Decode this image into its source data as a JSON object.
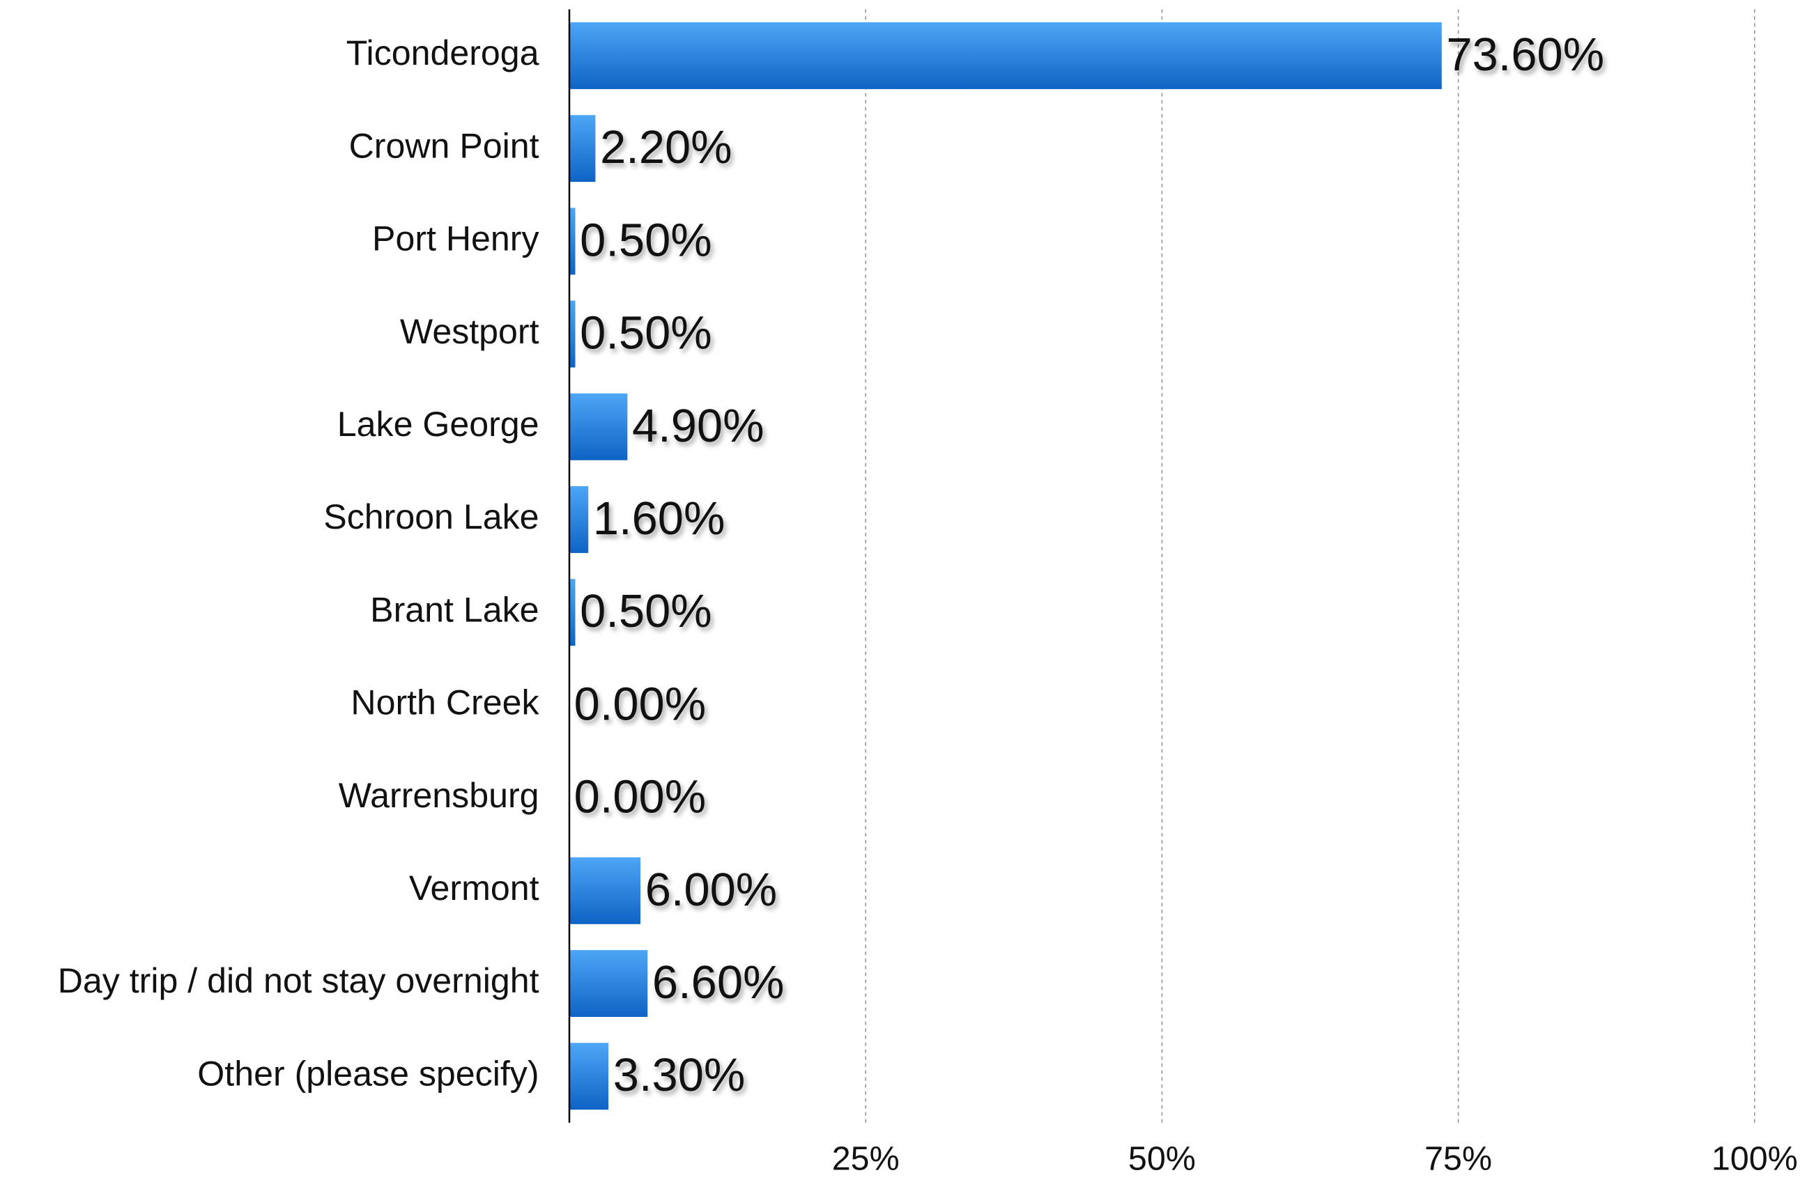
{
  "chart_data": {
    "type": "bar",
    "orientation": "horizontal",
    "categories": [
      "Ticonderoga",
      "Crown Point",
      "Port Henry",
      "Westport",
      "Lake George",
      "Schroon Lake",
      "Brant Lake",
      "North Creek",
      "Warrensburg",
      "Vermont",
      "Day trip / did not stay overnight",
      "Other (please specify)"
    ],
    "values": [
      73.6,
      2.2,
      0.5,
      0.5,
      4.9,
      1.6,
      0.5,
      0,
      0,
      6,
      6.6,
      3.3
    ],
    "value_labels": [
      "73.60%",
      "2.20%",
      "0.50%",
      "0.50%",
      "4.90%",
      "1.60%",
      "0.50%",
      "0.00%",
      "0.00%",
      "6.00%",
      "6.60%",
      "3.30%"
    ],
    "color": "#2a86e6",
    "xlim": [
      0,
      100
    ],
    "xticks": [
      {
        "value": 25,
        "label": "25%"
      },
      {
        "value": 50,
        "label": "50%"
      },
      {
        "value": 75,
        "label": "75%"
      },
      {
        "value": 100,
        "label": "100%"
      }
    ],
    "grid": true
  }
}
